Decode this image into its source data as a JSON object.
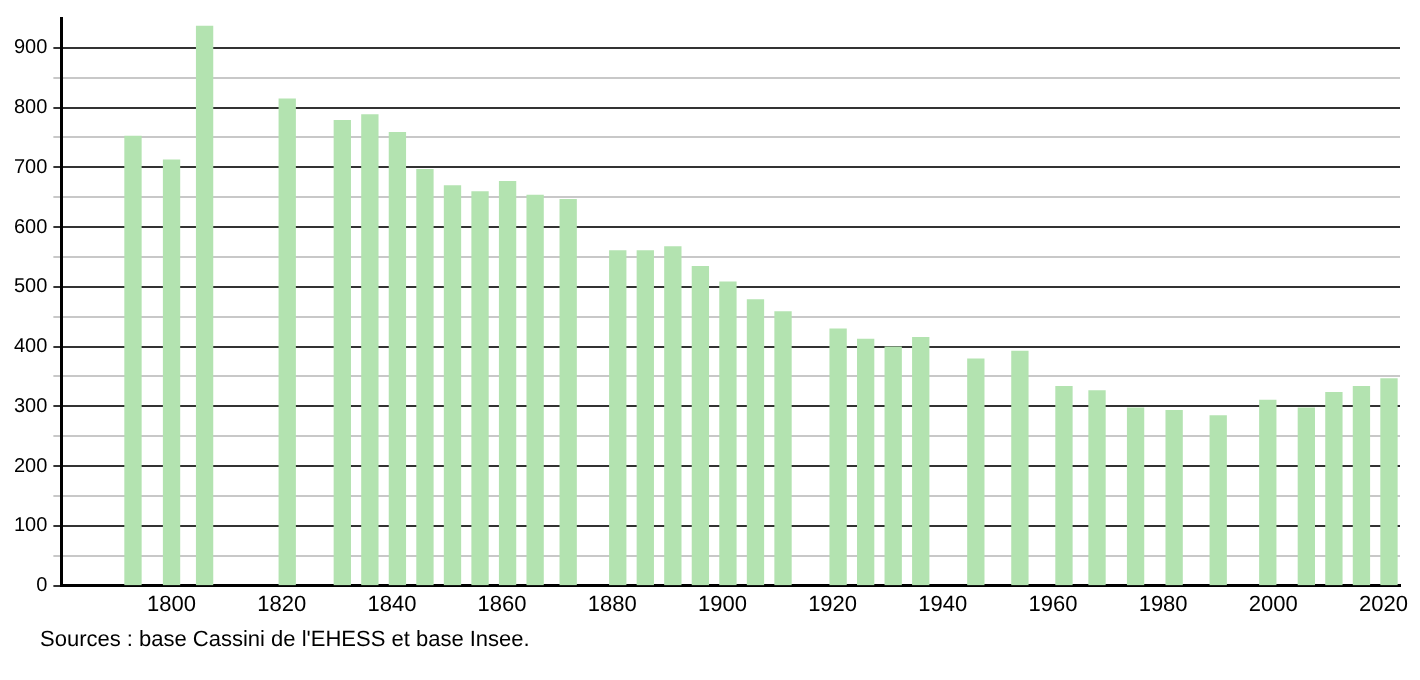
{
  "chart_data": {
    "type": "bar",
    "x": [
      1793,
      1800,
      1806,
      1821,
      1831,
      1836,
      1841,
      1846,
      1851,
      1856,
      1861,
      1866,
      1872,
      1881,
      1886,
      1891,
      1896,
      1901,
      1906,
      1911,
      1921,
      1926,
      1931,
      1936,
      1946,
      1954,
      1962,
      1968,
      1975,
      1982,
      1990,
      1999,
      2006,
      2011,
      2016,
      2021
    ],
    "values": [
      752,
      712,
      936,
      814,
      778,
      788,
      758,
      696,
      669,
      659,
      676,
      653,
      646,
      560,
      560,
      567,
      534,
      508,
      478,
      458,
      429,
      412,
      399,
      415,
      379,
      392,
      333,
      326,
      297,
      293,
      284,
      310,
      297,
      323,
      333,
      346
    ],
    "color": "#b3e3b0",
    "xlim": [
      1780,
      2023
    ],
    "xticks": [
      1800,
      1820,
      1840,
      1860,
      1880,
      1900,
      1920,
      1940,
      1960,
      1980,
      2000,
      2020
    ],
    "ylim": [
      0,
      950
    ],
    "yticks": [
      0,
      {
        "value": 50,
        "label": null
      },
      100,
      {
        "value": 150,
        "label": null
      },
      200,
      {
        "value": 250,
        "label": null
      },
      300,
      {
        "value": 350,
        "label": null
      },
      400,
      {
        "value": 450,
        "label": null
      },
      500,
      {
        "value": 550,
        "label": null
      },
      600,
      {
        "value": 650,
        "label": null
      },
      700,
      {
        "value": 750,
        "label": null
      },
      800,
      {
        "value": 850,
        "label": null
      },
      900
    ],
    "grid": "y",
    "legend": false,
    "annotations": [
      "Sources : base Cassini de l'EHESS et base Insee."
    ]
  }
}
